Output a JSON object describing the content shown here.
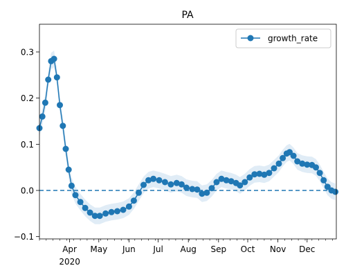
{
  "chart_data": {
    "type": "line",
    "title": "PA",
    "xlabel": "",
    "ylabel": "",
    "x_start": "2020-03-01",
    "x_end": "2020-12-31",
    "xlim": [
      "2020-03-01",
      "2020-12-31"
    ],
    "ylim": [
      -0.105,
      0.36
    ],
    "x_ticks": [
      {
        "date": "2020-04-01",
        "label": "Apr",
        "sublabel": "2020"
      },
      {
        "date": "2020-05-01",
        "label": "May"
      },
      {
        "date": "2020-06-01",
        "label": "Jun"
      },
      {
        "date": "2020-07-01",
        "label": "Jul"
      },
      {
        "date": "2020-08-01",
        "label": "Aug"
      },
      {
        "date": "2020-09-01",
        "label": "Sep"
      },
      {
        "date": "2020-10-01",
        "label": "Oct"
      },
      {
        "date": "2020-11-01",
        "label": "Nov"
      },
      {
        "date": "2020-12-01",
        "label": "Dec"
      }
    ],
    "y_ticks": [
      {
        "value": -0.1,
        "label": "−0.1"
      },
      {
        "value": 0.0,
        "label": "0.0"
      },
      {
        "value": 0.1,
        "label": "0.1"
      },
      {
        "value": 0.2,
        "label": "0.2"
      },
      {
        "value": 0.3,
        "label": "0.3"
      }
    ],
    "reference_line": {
      "y": 0.0,
      "style": "dashed",
      "color": "#1f77b4"
    },
    "legend": {
      "position": "top-right",
      "entries": [
        {
          "label": "growth_rate",
          "color": "#1f77b4"
        }
      ]
    },
    "grid": false,
    "series": [
      {
        "name": "growth_rate",
        "color": "#1f77b4",
        "band_color": "#c6dcef",
        "band_half_width": 0.018,
        "points": [
          [
            "2020-03-01",
            0.135
          ],
          [
            "2020-03-04",
            0.16
          ],
          [
            "2020-03-07",
            0.19
          ],
          [
            "2020-03-10",
            0.24
          ],
          [
            "2020-03-13",
            0.28
          ],
          [
            "2020-03-16",
            0.285
          ],
          [
            "2020-03-19",
            0.245
          ],
          [
            "2020-03-22",
            0.185
          ],
          [
            "2020-03-25",
            0.14
          ],
          [
            "2020-03-28",
            0.09
          ],
          [
            "2020-03-31",
            0.045
          ],
          [
            "2020-04-03",
            0.01
          ],
          [
            "2020-04-07",
            -0.01
          ],
          [
            "2020-04-12",
            -0.025
          ],
          [
            "2020-04-17",
            -0.038
          ],
          [
            "2020-04-22",
            -0.048
          ],
          [
            "2020-04-27",
            -0.055
          ],
          [
            "2020-05-02",
            -0.055
          ],
          [
            "2020-05-08",
            -0.05
          ],
          [
            "2020-05-14",
            -0.047
          ],
          [
            "2020-05-20",
            -0.045
          ],
          [
            "2020-05-26",
            -0.042
          ],
          [
            "2020-06-01",
            -0.035
          ],
          [
            "2020-06-06",
            -0.022
          ],
          [
            "2020-06-11",
            -0.005
          ],
          [
            "2020-06-16",
            0.012
          ],
          [
            "2020-06-21",
            0.022
          ],
          [
            "2020-06-26",
            0.025
          ],
          [
            "2020-07-02",
            0.022
          ],
          [
            "2020-07-08",
            0.018
          ],
          [
            "2020-07-14",
            0.013
          ],
          [
            "2020-07-20",
            0.016
          ],
          [
            "2020-07-25",
            0.013
          ],
          [
            "2020-07-30",
            0.006
          ],
          [
            "2020-08-05",
            0.003
          ],
          [
            "2020-08-10",
            0.002
          ],
          [
            "2020-08-15",
            -0.007
          ],
          [
            "2020-08-20",
            -0.005
          ],
          [
            "2020-08-25",
            0.005
          ],
          [
            "2020-08-30",
            0.018
          ],
          [
            "2020-09-04",
            0.025
          ],
          [
            "2020-09-09",
            0.022
          ],
          [
            "2020-09-14",
            0.02
          ],
          [
            "2020-09-19",
            0.016
          ],
          [
            "2020-09-23",
            0.011
          ],
          [
            "2020-09-28",
            0.018
          ],
          [
            "2020-10-03",
            0.028
          ],
          [
            "2020-10-08",
            0.035
          ],
          [
            "2020-10-13",
            0.036
          ],
          [
            "2020-10-18",
            0.034
          ],
          [
            "2020-10-23",
            0.038
          ],
          [
            "2020-10-28",
            0.048
          ],
          [
            "2020-11-02",
            0.058
          ],
          [
            "2020-11-06",
            0.07
          ],
          [
            "2020-11-10",
            0.08
          ],
          [
            "2020-11-13",
            0.083
          ],
          [
            "2020-11-17",
            0.075
          ],
          [
            "2020-11-21",
            0.063
          ],
          [
            "2020-11-26",
            0.058
          ],
          [
            "2020-12-01",
            0.056
          ],
          [
            "2020-12-06",
            0.055
          ],
          [
            "2020-12-10",
            0.05
          ],
          [
            "2020-12-14",
            0.038
          ],
          [
            "2020-12-18",
            0.022
          ],
          [
            "2020-12-22",
            0.008
          ],
          [
            "2020-12-26",
            0.0
          ],
          [
            "2020-12-30",
            -0.003
          ]
        ]
      }
    ]
  }
}
